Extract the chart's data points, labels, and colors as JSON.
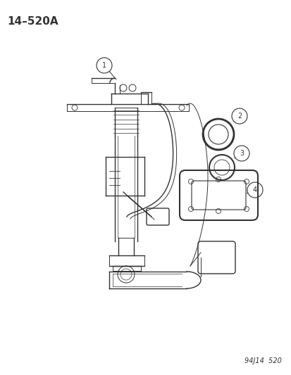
{
  "title": "14–520A",
  "watermark": "94J14  520",
  "bg_color": "#ffffff",
  "line_color": "#333333",
  "callout_color": "#333333",
  "title_fontsize": 11,
  "watermark_fontsize": 7,
  "fig_width": 4.14,
  "fig_height": 5.33,
  "dpi": 100
}
